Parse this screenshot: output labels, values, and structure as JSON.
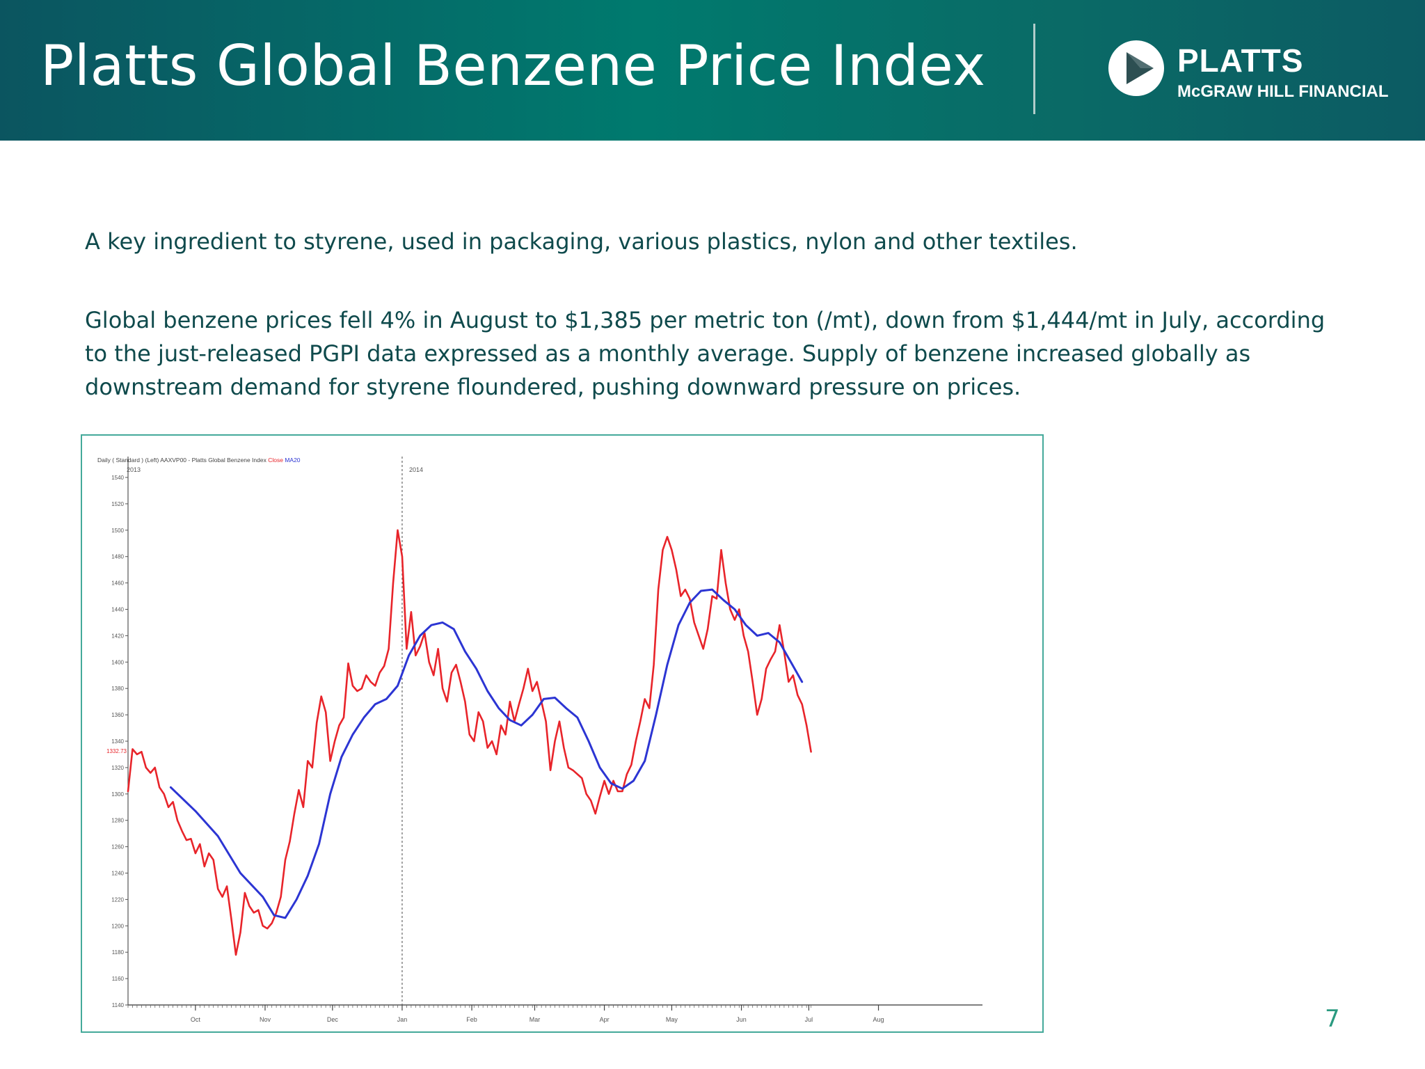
{
  "slide": {
    "title": "Platts Global Benzene Price Index",
    "page_number": "7",
    "paragraphs": [
      "A key ingredient to styrene, used in packaging, various plastics, nylon and other textiles.",
      "Global benzene prices fell 4% in August to $1,385 per metric ton (/mt), down from $1,444/mt in July, according to the just-released PGPI data expressed as a monthly average. Supply of benzene increased globally as downstream demand for styrene floundered, pushing downward pressure on prices."
    ],
    "logo": {
      "name": "PLATTS",
      "subtitle": "McGRAW HILL FINANCIAL",
      "icon": "play-icon"
    },
    "colors": {
      "header": "#007a6e",
      "text": "#0f4a4c",
      "page_number": "#2a9a80",
      "chart_border": "#44a99a"
    }
  },
  "chart_data": {
    "type": "line",
    "header_label": "Daily ( Standard ) (Left)",
    "index_label": "AAXVP00 - Platts Global Benzene Index",
    "legend": [
      {
        "name": "Close",
        "color": "#e8242a"
      },
      {
        "name": "MA20",
        "color": "#2c35d3"
      }
    ],
    "year_labels": [
      {
        "label": "2013",
        "day": 0
      },
      {
        "label": "2014",
        "day": 92
      }
    ],
    "x_ticks": [
      {
        "label": "Oct",
        "day": 30
      },
      {
        "label": "Nov",
        "day": 61
      },
      {
        "label": "Dec",
        "day": 91
      },
      {
        "label": "Jan",
        "day": 122
      },
      {
        "label": "Feb",
        "day": 153
      },
      {
        "label": "Mar",
        "day": 181
      },
      {
        "label": "Apr",
        "day": 212
      },
      {
        "label": "May",
        "day": 242
      },
      {
        "label": "Jun",
        "day": 273
      },
      {
        "label": "Jul",
        "day": 303
      },
      {
        "label": "Aug",
        "day": 334
      }
    ],
    "xlim": [
      0,
      371
    ],
    "ylim": [
      1140,
      1540
    ],
    "y_ticks": [
      1140,
      1160,
      1180,
      1200,
      1220,
      1240,
      1260,
      1280,
      1300,
      1320,
      1340,
      1360,
      1380,
      1400,
      1420,
      1440,
      1460,
      1480,
      1500,
      1520,
      1540
    ],
    "last_value_label": "1332.73",
    "last_value": 1332.73,
    "year_divider_day": 122,
    "series": [
      {
        "name": "Close",
        "color": "#e8242a",
        "points": [
          [
            0,
            1302
          ],
          [
            2,
            1334
          ],
          [
            4,
            1330
          ],
          [
            6,
            1332
          ],
          [
            8,
            1320
          ],
          [
            10,
            1316
          ],
          [
            12,
            1320
          ],
          [
            14,
            1305
          ],
          [
            16,
            1300
          ],
          [
            18,
            1290
          ],
          [
            20,
            1294
          ],
          [
            22,
            1280
          ],
          [
            24,
            1272
          ],
          [
            26,
            1265
          ],
          [
            28,
            1266
          ],
          [
            30,
            1255
          ],
          [
            32,
            1262
          ],
          [
            34,
            1245
          ],
          [
            36,
            1255
          ],
          [
            38,
            1250
          ],
          [
            40,
            1228
          ],
          [
            42,
            1222
          ],
          [
            44,
            1230
          ],
          [
            46,
            1205
          ],
          [
            48,
            1178
          ],
          [
            50,
            1195
          ],
          [
            52,
            1225
          ],
          [
            54,
            1215
          ],
          [
            56,
            1210
          ],
          [
            58,
            1212
          ],
          [
            60,
            1200
          ],
          [
            62,
            1198
          ],
          [
            64,
            1202
          ],
          [
            66,
            1210
          ],
          [
            68,
            1222
          ],
          [
            70,
            1250
          ],
          [
            72,
            1264
          ],
          [
            74,
            1285
          ],
          [
            76,
            1303
          ],
          [
            78,
            1290
          ],
          [
            80,
            1325
          ],
          [
            82,
            1320
          ],
          [
            84,
            1354
          ],
          [
            86,
            1374
          ],
          [
            88,
            1362
          ],
          [
            90,
            1325
          ],
          [
            92,
            1340
          ],
          [
            94,
            1352
          ],
          [
            96,
            1358
          ],
          [
            98,
            1399
          ],
          [
            100,
            1382
          ],
          [
            102,
            1378
          ],
          [
            104,
            1380
          ],
          [
            106,
            1390
          ],
          [
            108,
            1385
          ],
          [
            110,
            1382
          ],
          [
            112,
            1392
          ],
          [
            114,
            1397
          ],
          [
            116,
            1410
          ],
          [
            118,
            1460
          ],
          [
            120,
            1500
          ],
          [
            122,
            1480
          ],
          [
            124,
            1410
          ],
          [
            126,
            1438
          ],
          [
            128,
            1405
          ],
          [
            130,
            1412
          ],
          [
            132,
            1422
          ],
          [
            134,
            1400
          ],
          [
            136,
            1390
          ],
          [
            138,
            1410
          ],
          [
            140,
            1380
          ],
          [
            142,
            1370
          ],
          [
            144,
            1392
          ],
          [
            146,
            1398
          ],
          [
            148,
            1385
          ],
          [
            150,
            1370
          ],
          [
            152,
            1345
          ],
          [
            154,
            1340
          ],
          [
            156,
            1362
          ],
          [
            158,
            1355
          ],
          [
            160,
            1335
          ],
          [
            162,
            1340
          ],
          [
            164,
            1330
          ],
          [
            166,
            1352
          ],
          [
            168,
            1345
          ],
          [
            170,
            1370
          ],
          [
            172,
            1355
          ],
          [
            174,
            1368
          ],
          [
            176,
            1380
          ],
          [
            178,
            1395
          ],
          [
            180,
            1378
          ],
          [
            182,
            1385
          ],
          [
            184,
            1370
          ],
          [
            186,
            1355
          ],
          [
            188,
            1318
          ],
          [
            190,
            1340
          ],
          [
            192,
            1355
          ],
          [
            194,
            1335
          ],
          [
            196,
            1320
          ],
          [
            198,
            1318
          ],
          [
            200,
            1315
          ],
          [
            202,
            1312
          ],
          [
            204,
            1300
          ],
          [
            206,
            1295
          ],
          [
            208,
            1285
          ],
          [
            210,
            1298
          ],
          [
            212,
            1310
          ],
          [
            214,
            1300
          ],
          [
            216,
            1310
          ],
          [
            218,
            1302
          ],
          [
            220,
            1302
          ],
          [
            222,
            1315
          ],
          [
            224,
            1322
          ],
          [
            226,
            1340
          ],
          [
            228,
            1355
          ],
          [
            230,
            1372
          ],
          [
            232,
            1365
          ],
          [
            234,
            1398
          ],
          [
            236,
            1455
          ],
          [
            238,
            1485
          ],
          [
            240,
            1495
          ],
          [
            242,
            1485
          ],
          [
            244,
            1470
          ],
          [
            246,
            1450
          ],
          [
            248,
            1455
          ],
          [
            250,
            1448
          ],
          [
            252,
            1430
          ],
          [
            254,
            1420
          ],
          [
            256,
            1410
          ],
          [
            258,
            1425
          ],
          [
            260,
            1450
          ],
          [
            262,
            1448
          ],
          [
            264,
            1485
          ],
          [
            266,
            1460
          ],
          [
            268,
            1440
          ],
          [
            270,
            1432
          ],
          [
            272,
            1440
          ],
          [
            274,
            1420
          ],
          [
            276,
            1408
          ],
          [
            278,
            1385
          ],
          [
            280,
            1360
          ],
          [
            282,
            1372
          ],
          [
            284,
            1395
          ],
          [
            286,
            1402
          ],
          [
            288,
            1408
          ],
          [
            290,
            1428
          ],
          [
            292,
            1408
          ],
          [
            294,
            1385
          ],
          [
            296,
            1390
          ],
          [
            298,
            1375
          ],
          [
            300,
            1368
          ],
          [
            302,
            1352
          ],
          [
            304,
            1332
          ]
        ]
      },
      {
        "name": "MA20",
        "color": "#2c35d3",
        "points": [
          [
            19,
            1305
          ],
          [
            30,
            1287
          ],
          [
            40,
            1268
          ],
          [
            50,
            1240
          ],
          [
            60,
            1222
          ],
          [
            65,
            1208
          ],
          [
            70,
            1206
          ],
          [
            75,
            1220
          ],
          [
            80,
            1238
          ],
          [
            85,
            1262
          ],
          [
            90,
            1300
          ],
          [
            95,
            1328
          ],
          [
            100,
            1345
          ],
          [
            105,
            1358
          ],
          [
            110,
            1368
          ],
          [
            115,
            1372
          ],
          [
            120,
            1382
          ],
          [
            125,
            1405
          ],
          [
            130,
            1420
          ],
          [
            135,
            1428
          ],
          [
            140,
            1430
          ],
          [
            145,
            1425
          ],
          [
            150,
            1408
          ],
          [
            155,
            1395
          ],
          [
            160,
            1378
          ],
          [
            165,
            1365
          ],
          [
            170,
            1356
          ],
          [
            175,
            1352
          ],
          [
            180,
            1360
          ],
          [
            185,
            1372
          ],
          [
            190,
            1373
          ],
          [
            195,
            1365
          ],
          [
            200,
            1358
          ],
          [
            205,
            1340
          ],
          [
            210,
            1320
          ],
          [
            215,
            1308
          ],
          [
            220,
            1304
          ],
          [
            225,
            1310
          ],
          [
            230,
            1325
          ],
          [
            235,
            1360
          ],
          [
            240,
            1398
          ],
          [
            245,
            1428
          ],
          [
            250,
            1445
          ],
          [
            255,
            1454
          ],
          [
            260,
            1455
          ],
          [
            265,
            1447
          ],
          [
            270,
            1440
          ],
          [
            275,
            1428
          ],
          [
            280,
            1420
          ],
          [
            285,
            1422
          ],
          [
            290,
            1415
          ],
          [
            295,
            1400
          ],
          [
            300,
            1385
          ]
        ]
      }
    ]
  }
}
